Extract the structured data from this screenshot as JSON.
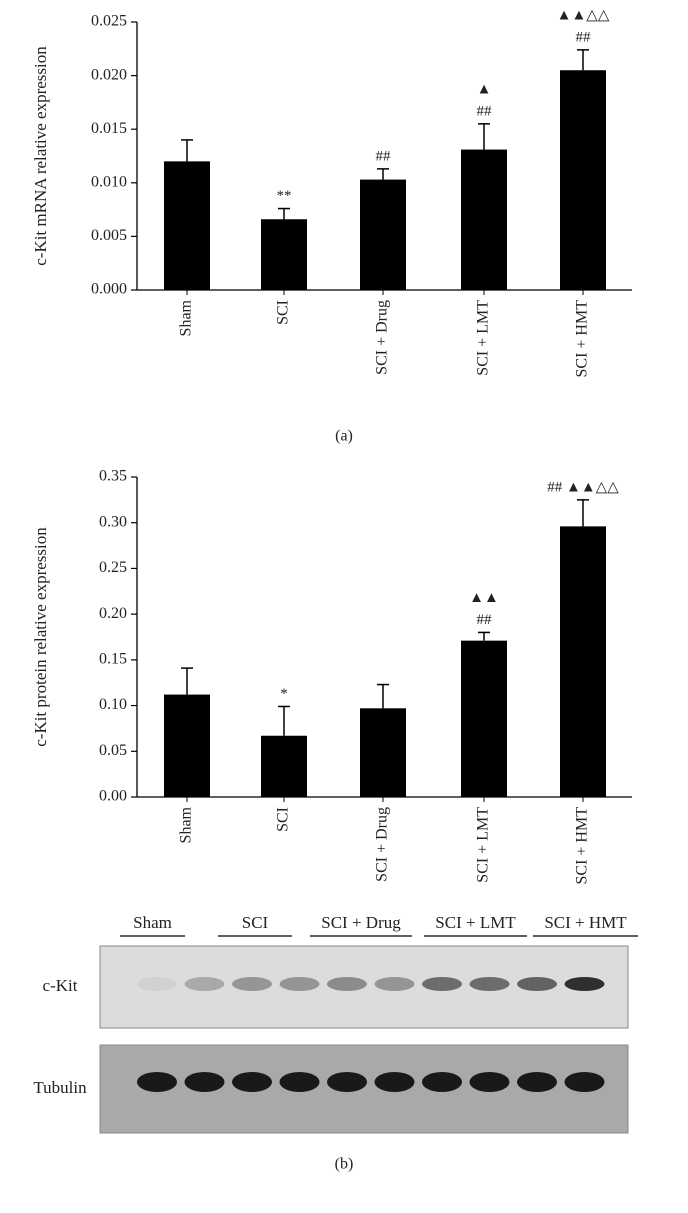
{
  "chart_data": [
    {
      "type": "bar",
      "ylabel": "c-Kit mRNA relative expression",
      "panel_label": "(a)",
      "categories": [
        "Sham",
        "SCI",
        "SCI + Drug",
        "SCI + LMT",
        "SCI + HMT"
      ],
      "values": [
        0.012,
        0.0066,
        0.0103,
        0.0131,
        0.0205
      ],
      "errors": [
        0.002,
        0.001,
        0.001,
        0.0024,
        0.0019
      ],
      "annotations": [
        [],
        [
          "**"
        ],
        [
          "##"
        ],
        [
          "##",
          "▲"
        ],
        [
          "##",
          "▲▲△△"
        ]
      ],
      "color": "#000000",
      "ylim": [
        0,
        0.025
      ],
      "yticks": [
        {
          "value": 0,
          "label": "0.000"
        },
        {
          "value": 0.005,
          "label": "0.005"
        },
        {
          "value": 0.01,
          "label": "0.010"
        },
        {
          "value": 0.015,
          "label": "0.015"
        },
        {
          "value": 0.02,
          "label": "0.020"
        },
        {
          "value": 0.025,
          "label": "0.025"
        }
      ]
    },
    {
      "type": "bar",
      "ylabel": "c-Kit protein relative expression",
      "panel_label": "(b)",
      "categories": [
        "Sham",
        "SCI",
        "SCI + Drug",
        "SCI + LMT",
        "SCI + HMT"
      ],
      "values": [
        0.112,
        0.067,
        0.097,
        0.171,
        0.296
      ],
      "errors": [
        0.029,
        0.032,
        0.026,
        0.009,
        0.029
      ],
      "annotations": [
        [],
        [
          "*"
        ],
        [],
        [
          "##",
          "▲▲"
        ],
        [
          "##  ▲▲△△"
        ]
      ],
      "color": "#000000",
      "ylim": [
        0,
        0.35
      ],
      "yticks": [
        {
          "value": 0,
          "label": "0.00"
        },
        {
          "value": 0.05,
          "label": "0.05"
        },
        {
          "value": 0.1,
          "label": "0.10"
        },
        {
          "value": 0.15,
          "label": "0.15"
        },
        {
          "value": 0.2,
          "label": "0.20"
        },
        {
          "value": 0.25,
          "label": "0.25"
        },
        {
          "value": 0.3,
          "label": "0.30"
        },
        {
          "value": 0.35,
          "label": "0.35"
        }
      ]
    }
  ],
  "blot": {
    "lanes": [
      "Sham",
      "SCI",
      "SCI + Drug",
      "SCI + LMT",
      "SCI + HMT"
    ],
    "rows": [
      "c-Kit",
      "Tubulin"
    ]
  }
}
